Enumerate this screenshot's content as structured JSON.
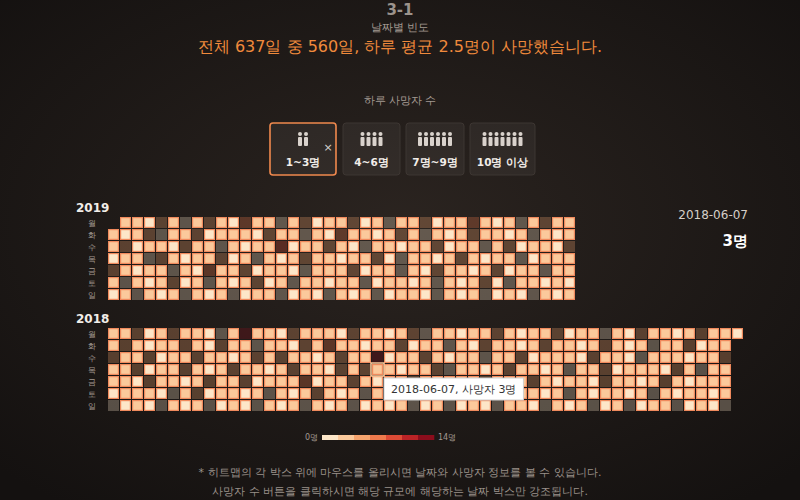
{
  "chart_data": {
    "type": "calendar_heatmap",
    "section": "3-1",
    "subtitle": "날짜별 빈도",
    "title": "전체 637일 중 560일, 하루 평균 2.5명이 사망했습니다.",
    "filter_label": "하루 사망자 수",
    "filters": [
      {
        "label": "1~3명",
        "range": [
          1,
          3
        ],
        "selected": true
      },
      {
        "label": "4~6명",
        "range": [
          4,
          6
        ],
        "selected": false
      },
      {
        "label": "7명~9명",
        "range": [
          7,
          9
        ],
        "selected": false
      },
      {
        "label": "10명 이상",
        "range": [
          10,
          null
        ],
        "selected": false
      }
    ],
    "close_label": "×",
    "rows": [
      "월",
      "화",
      "수",
      "목",
      "금",
      "토",
      "일"
    ],
    "years": [
      {
        "label": "2019",
        "cells": [
          [
            null,
            2,
            3,
            1,
            5,
            2,
            0,
            3,
            4,
            2,
            1,
            6,
            2,
            3,
            0,
            2,
            4,
            1,
            3,
            2,
            5,
            1,
            2,
            0,
            3,
            2,
            4,
            1,
            2,
            3,
            7,
            2,
            1,
            3,
            0,
            2,
            4,
            2,
            3
          ],
          [
            3,
            1,
            2,
            4,
            0,
            3,
            2,
            5,
            1,
            2,
            3,
            2,
            1,
            4,
            2,
            3,
            0,
            2,
            1,
            6,
            2,
            3,
            1,
            2,
            4,
            2,
            0,
            3,
            1,
            2,
            5,
            3,
            2,
            1,
            2,
            0,
            3,
            1,
            2
          ],
          [
            2,
            4,
            1,
            3,
            2,
            1,
            5,
            2,
            3,
            0,
            2,
            1,
            3,
            2,
            8,
            1,
            2,
            3,
            4,
            2,
            1,
            0,
            3,
            2,
            1,
            3,
            2,
            4,
            1,
            2,
            3,
            0,
            2,
            5,
            1,
            3,
            2,
            1,
            4
          ],
          [
            1,
            2,
            3,
            0,
            4,
            2,
            1,
            3,
            2,
            5,
            1,
            2,
            0,
            3,
            1,
            2,
            4,
            3,
            2,
            1,
            2,
            3,
            5,
            1,
            0,
            2,
            3,
            1,
            2,
            4,
            2,
            1,
            3,
            2,
            0,
            1,
            3,
            2,
            2
          ],
          [
            4,
            2,
            1,
            3,
            2,
            0,
            2,
            1,
            6,
            3,
            2,
            4,
            1,
            2,
            3,
            1,
            0,
            2,
            3,
            2,
            4,
            1,
            2,
            3,
            0,
            2,
            1,
            5,
            3,
            2,
            1,
            2,
            4,
            1,
            3,
            2,
            0,
            2,
            3
          ],
          [
            2,
            0,
            3,
            1,
            2,
            4,
            1,
            2,
            0,
            3,
            1,
            2,
            5,
            1,
            2,
            0,
            3,
            2,
            1,
            2,
            3,
            0,
            1,
            2,
            2,
            1,
            3,
            0,
            2,
            1,
            2,
            4,
            1,
            0,
            2,
            3,
            1,
            2,
            1
          ],
          [
            1,
            3,
            0,
            2,
            1,
            2,
            0,
            3,
            1,
            2,
            0,
            1,
            2,
            3,
            0,
            1,
            2,
            1,
            0,
            3,
            1,
            2,
            0,
            1,
            2,
            3,
            1,
            0,
            2,
            1,
            3,
            0,
            1,
            2,
            1,
            0,
            2,
            1,
            2
          ]
        ]
      },
      {
        "label": "2018",
        "cells": [
          [
            3,
            2,
            5,
            1,
            2,
            4,
            2,
            3,
            1,
            0,
            2,
            14,
            3,
            2,
            1,
            4,
            2,
            3,
            2,
            1,
            5,
            2,
            3,
            1,
            2,
            4,
            0,
            3,
            2,
            1,
            2,
            3,
            5,
            2,
            1,
            3,
            2,
            4,
            1,
            2,
            3,
            0,
            2,
            1,
            4,
            3,
            2,
            1,
            2,
            5,
            3,
            2,
            1
          ],
          [
            2,
            4,
            3,
            1,
            2,
            3,
            5,
            2,
            1,
            4,
            3,
            2,
            0,
            2,
            3,
            1,
            4,
            2,
            7,
            3,
            2,
            1,
            3,
            2,
            4,
            1,
            2,
            3,
            0,
            2,
            1,
            4,
            2,
            3,
            1,
            2,
            5,
            2,
            3,
            1,
            2,
            4,
            2,
            1,
            3,
            0,
            2,
            3,
            4,
            1,
            2,
            3,
            null
          ],
          [
            4,
            3,
            2,
            5,
            1,
            3,
            2,
            4,
            3,
            2,
            1,
            3,
            4,
            2,
            5,
            2,
            3,
            1,
            2,
            4,
            3,
            2,
            12,
            1,
            3,
            2,
            4,
            2,
            1,
            3,
            2,
            0,
            3,
            2,
            4,
            1,
            2,
            3,
            2,
            1,
            4,
            2,
            3,
            1,
            0,
            2,
            3,
            2,
            1,
            3,
            2,
            4,
            null
          ],
          [
            3,
            2,
            4,
            1,
            3,
            2,
            5,
            2,
            1,
            3,
            4,
            2,
            3,
            1,
            2,
            4,
            3,
            2,
            1,
            5,
            2,
            4,
            3,
            2,
            1,
            3,
            2,
            4,
            0,
            2,
            3,
            1,
            2,
            4,
            2,
            3,
            1,
            2,
            0,
            3,
            2,
            4,
            1,
            2,
            3,
            2,
            1,
            4,
            2,
            0,
            3,
            2,
            null
          ],
          [
            2,
            3,
            1,
            4,
            2,
            3,
            1,
            2,
            5,
            2,
            3,
            4,
            1,
            2,
            3,
            2,
            6,
            1,
            3,
            2,
            4,
            2,
            1,
            3,
            2,
            4,
            3,
            1,
            2,
            3,
            2,
            5,
            1,
            2,
            3,
            4,
            2,
            1,
            3,
            2,
            1,
            4,
            3,
            2,
            1,
            2,
            4,
            3,
            1,
            2,
            3,
            2,
            null
          ],
          [
            1,
            2,
            3,
            2,
            1,
            0,
            2,
            4,
            1,
            3,
            2,
            1,
            2,
            0,
            3,
            1,
            2,
            4,
            2,
            1,
            3,
            0,
            2,
            1,
            2,
            3,
            1,
            2,
            4,
            1,
            0,
            2,
            3,
            1,
            2,
            2,
            1,
            3,
            0,
            2,
            1,
            2,
            3,
            1,
            2,
            0,
            2,
            1,
            3,
            2,
            1,
            2,
            null
          ],
          [
            0,
            1,
            2,
            1,
            0,
            3,
            1,
            2,
            0,
            1,
            2,
            1,
            0,
            2,
            1,
            3,
            0,
            2,
            1,
            2,
            0,
            1,
            2,
            1,
            3,
            0,
            1,
            2,
            0,
            1,
            2,
            1,
            0,
            2,
            3,
            1,
            0,
            2,
            1,
            2,
            0,
            1,
            2,
            0,
            1,
            3,
            2,
            0,
            1,
            2,
            1,
            0,
            null
          ]
        ]
      }
    ],
    "hover": {
      "date": "2018-06-07",
      "value": 3,
      "value_label": "3명",
      "tooltip": "2018-06-07, 사망자 3명"
    },
    "colorbar": {
      "range": [
        0,
        14
      ],
      "ticks": [
        {
          "value": 0,
          "label": "0명"
        },
        {
          "value": 14,
          "label": "14명"
        }
      ],
      "colors": [
        "#fde6c8",
        "#fbc99b",
        "#f6a46e",
        "#ef7a4d",
        "#dd4b36",
        "#bb2326",
        "#8b0d1c"
      ]
    },
    "notes": [
      "* 히트맵의 각 박스 위에 마우스를 올리시면 날짜와 사망자 정보를 볼 수 있습니다.",
      "사망자 수 버튼을 클릭하시면 해당 규모에 해당하는 날짜 박스만 강조됩니다."
    ]
  }
}
